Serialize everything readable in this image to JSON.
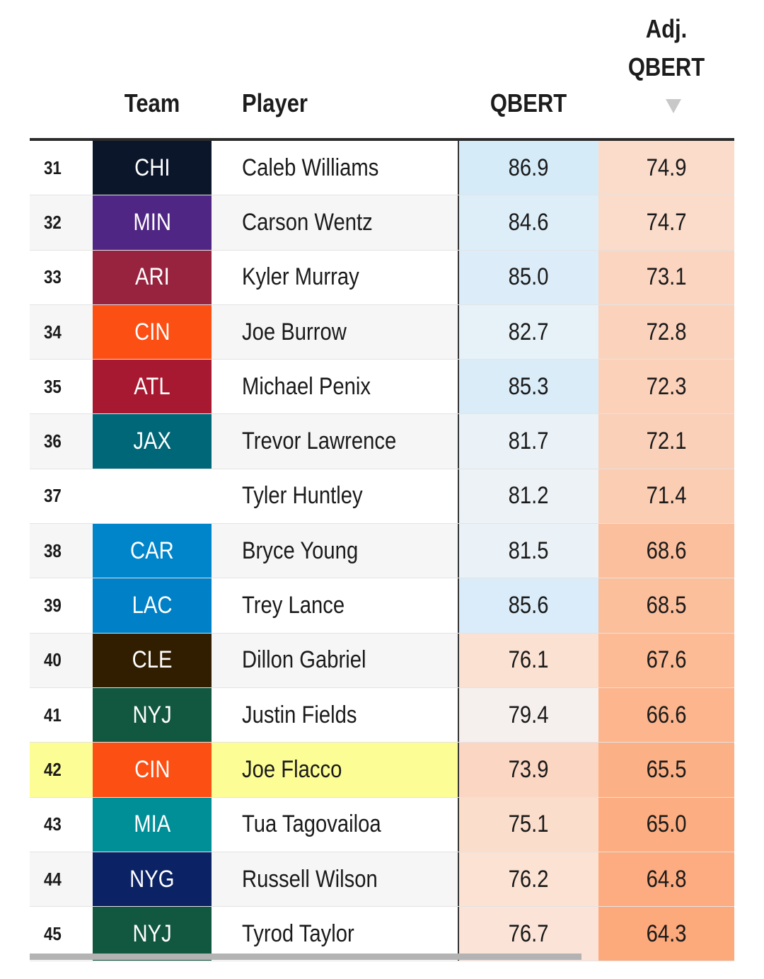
{
  "header": {
    "team": "Team",
    "player": "Player",
    "qbert": "QBERT",
    "adj_line1": "Adj.",
    "adj_line2": "QBERT",
    "sort_icon": "triangle-down-icon"
  },
  "rows": [
    {
      "rank": "31",
      "team": "CHI",
      "team_color": "#0b162a",
      "player": "Caleb Williams",
      "qbert": "86.9",
      "qbert_color": "#d6ebf8",
      "adj": "74.9",
      "adj_color": "#fbdccb"
    },
    {
      "rank": "32",
      "team": "MIN",
      "team_color": "#4f2683",
      "player": "Carson Wentz",
      "qbert": "84.6",
      "qbert_color": "#deeef9",
      "adj": "74.7",
      "adj_color": "#fbdbc9"
    },
    {
      "rank": "33",
      "team": "ARI",
      "team_color": "#97233f",
      "player": "Kyler Murray",
      "qbert": "85.0",
      "qbert_color": "#dcedf9",
      "adj": "73.1",
      "adj_color": "#fbd5c0"
    },
    {
      "rank": "34",
      "team": "CIN",
      "team_color": "#fb4f14",
      "player": "Joe Burrow",
      "qbert": "82.7",
      "qbert_color": "#e6f1f8",
      "adj": "72.8",
      "adj_color": "#fbd3bd"
    },
    {
      "rank": "35",
      "team": "ATL",
      "team_color": "#a71930",
      "player": "Michael Penix",
      "qbert": "85.3",
      "qbert_color": "#dbecf9",
      "adj": "72.3",
      "adj_color": "#fbd1ba"
    },
    {
      "rank": "36",
      "team": "JAX",
      "team_color": "#006778",
      "player": "Trevor Lawrence",
      "qbert": "81.7",
      "qbert_color": "#eaf2f7",
      "adj": "72.1",
      "adj_color": "#fbd0b8"
    },
    {
      "rank": "37",
      "team": "",
      "team_color": "",
      "player": "Tyler Huntley",
      "qbert": "81.2",
      "qbert_color": "#edf2f6",
      "adj": "71.4",
      "adj_color": "#fbcdb3"
    },
    {
      "rank": "38",
      "team": "CAR",
      "team_color": "#0085ca",
      "player": "Bryce Young",
      "qbert": "81.5",
      "qbert_color": "#ebf2f7",
      "adj": "68.6",
      "adj_color": "#fcbf9d"
    },
    {
      "rank": "39",
      "team": "LAC",
      "team_color": "#0080c6",
      "player": "Trey Lance",
      "qbert": "85.6",
      "qbert_color": "#daecf9",
      "adj": "68.5",
      "adj_color": "#fcbf9c"
    },
    {
      "rank": "40",
      "team": "CLE",
      "team_color": "#311d00",
      "player": "Dillon Gabriel",
      "qbert": "76.1",
      "qbert_color": "#fbe1d2",
      "adj": "67.6",
      "adj_color": "#fcbb95"
    },
    {
      "rank": "41",
      "team": "NYJ",
      "team_color": "#125740",
      "player": "Justin Fields",
      "qbert": "79.4",
      "qbert_color": "#f5f0ee",
      "adj": "66.6",
      "adj_color": "#fcb58d"
    },
    {
      "rank": "42",
      "team": "CIN",
      "team_color": "#fb4f14",
      "player": "Joe Flacco",
      "qbert": "73.9",
      "qbert_color": "#fbd7c3",
      "adj": "65.5",
      "adj_color": "#fcb085",
      "highlight": true
    },
    {
      "rank": "43",
      "team": "MIA",
      "team_color": "#008e97",
      "player": "Tua Tagovailoa",
      "qbert": "75.1",
      "qbert_color": "#fbddcc",
      "adj": "65.0",
      "adj_color": "#fcad81"
    },
    {
      "rank": "44",
      "team": "NYG",
      "team_color": "#0b2265",
      "player": "Russell Wilson",
      "qbert": "76.2",
      "qbert_color": "#fbe2d3",
      "adj": "64.8",
      "adj_color": "#fcac80"
    },
    {
      "rank": "45",
      "team": "NYJ",
      "team_color": "#125740",
      "player": "Tyrod Taylor",
      "qbert": "76.7",
      "qbert_color": "#fbe4d7",
      "adj": "64.3",
      "adj_color": "#fca97c"
    }
  ]
}
